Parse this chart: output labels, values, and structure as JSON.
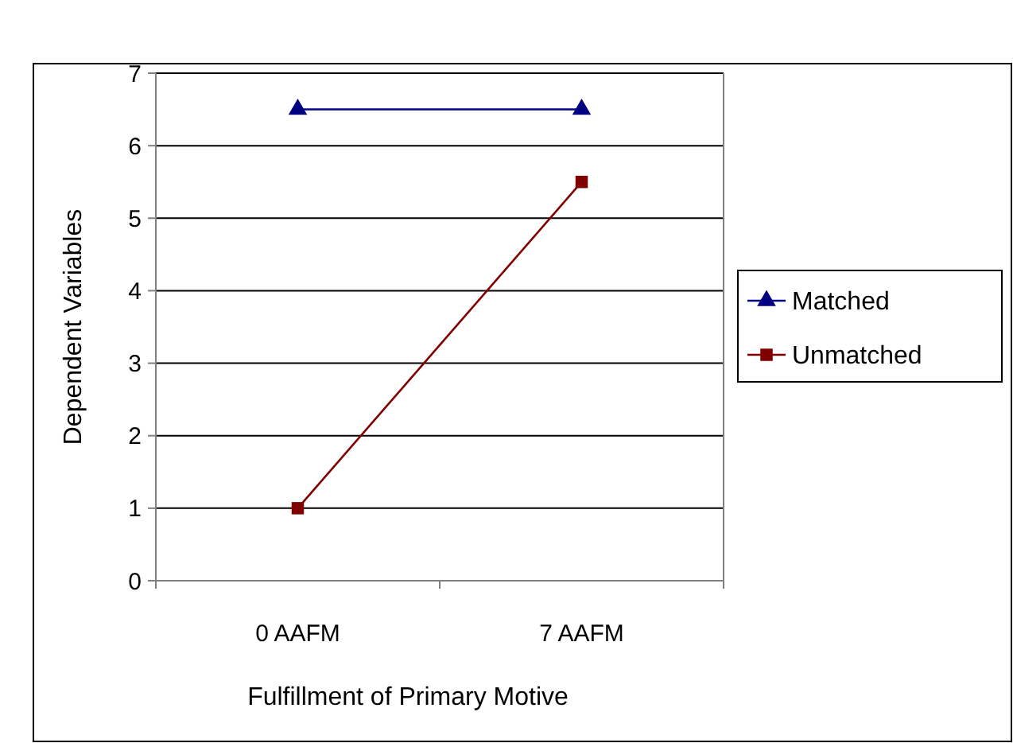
{
  "chart_data": {
    "type": "line",
    "xlabel": "Fulfillment of Primary Motive",
    "ylabel": "Dependent Variables",
    "categories": [
      "0 AAFM",
      "7 AAFM"
    ],
    "series": [
      {
        "name": "Matched",
        "color": "#000080",
        "values": [
          6.5,
          6.5
        ],
        "marker": "triangle"
      },
      {
        "name": "Unmatched",
        "color": "#800000",
        "values": [
          1,
          5.5
        ],
        "marker": "square"
      }
    ],
    "ylim": [
      0,
      7
    ],
    "yticks": [
      0,
      1,
      2,
      3,
      4,
      5,
      6,
      7
    ],
    "grid": "y",
    "legend": "right"
  }
}
